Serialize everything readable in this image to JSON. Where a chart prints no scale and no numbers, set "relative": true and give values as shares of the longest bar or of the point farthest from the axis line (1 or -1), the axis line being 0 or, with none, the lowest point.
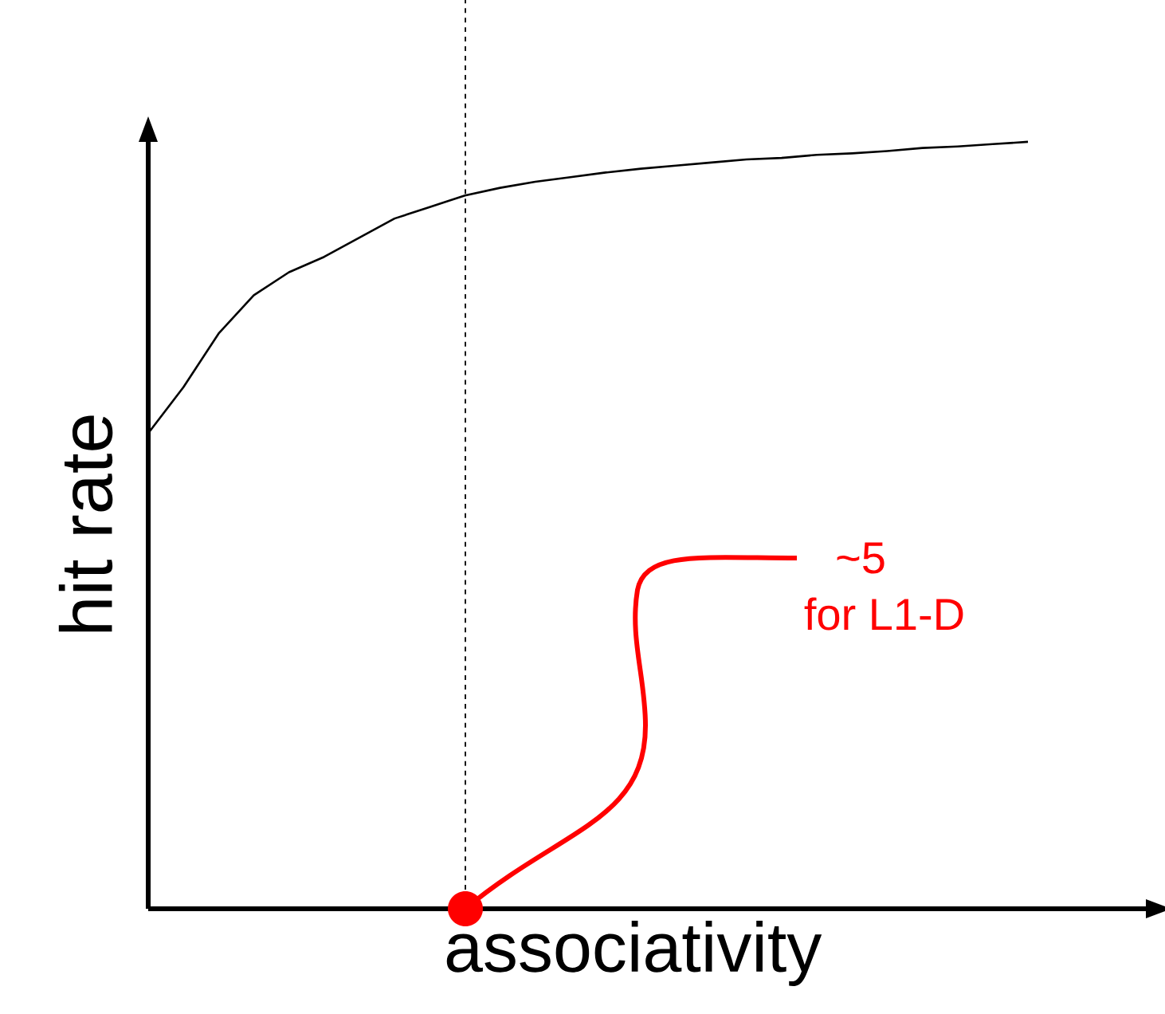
{
  "chart_data": {
    "type": "line",
    "relative": true,
    "xlabel": "associativity",
    "ylabel": "hit rate",
    "categories": [
      null,
      null,
      null,
      null,
      null,
      null,
      null,
      null,
      null,
      null,
      null,
      null,
      null,
      null,
      null,
      null,
      null,
      null,
      null,
      null,
      null,
      null,
      null,
      null,
      null,
      null
    ],
    "values": [
      0.62,
      0.68,
      0.75,
      0.8,
      0.83,
      0.85,
      0.875,
      0.9,
      0.915,
      0.93,
      0.94,
      0.948,
      0.954,
      0.96,
      0.965,
      0.969,
      0.973,
      0.977,
      0.979,
      0.983,
      0.985,
      0.988,
      0.992,
      0.994,
      0.997,
      1
    ],
    "color": "#000000",
    "annotations": [
      "~5",
      "for L1-D"
    ]
  }
}
